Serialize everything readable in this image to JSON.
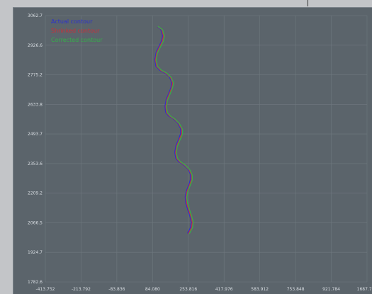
{
  "chart_data": {
    "type": "line",
    "title": "",
    "xlabel": "",
    "ylabel": "",
    "xlim": [
      -413.752,
      1687.728
    ],
    "ylim": [
      1782.6,
      3062.7
    ],
    "x_ticks": [
      "-413.752",
      "-213.792",
      "-83.836",
      "84.080",
      "253.816",
      "417.976",
      "583.912",
      "753.848",
      "921.784",
      "1687.728"
    ],
    "y_ticks": [
      "3062.7",
      "2926.6",
      "2775.2",
      "2633.8",
      "2493.7",
      "2353.6",
      "2209.2",
      "2066.5",
      "1924.7",
      "1782.6"
    ],
    "grid": true,
    "legend_position": "top-left",
    "series": [
      {
        "name": "Actual contour",
        "color": "#2b2fd1",
        "points": [
          [
            321.0,
            3008
          ],
          [
            340.0,
            2997
          ],
          [
            352.0,
            2968
          ],
          [
            348.0,
            2946
          ],
          [
            330.0,
            2916
          ],
          [
            310.0,
            2886
          ],
          [
            302.0,
            2852
          ],
          [
            308.0,
            2820
          ],
          [
            334.0,
            2800
          ],
          [
            364.0,
            2788
          ],
          [
            396.0,
            2770
          ],
          [
            412.0,
            2742
          ],
          [
            408.0,
            2718
          ],
          [
            392.0,
            2688
          ],
          [
            376.0,
            2660
          ],
          [
            368.0,
            2628
          ],
          [
            372.0,
            2598
          ],
          [
            392.0,
            2580
          ],
          [
            420.0,
            2568
          ],
          [
            450.0,
            2548
          ],
          [
            470.0,
            2520
          ],
          [
            470.0,
            2496
          ],
          [
            456.0,
            2466
          ],
          [
            440.0,
            2438
          ],
          [
            432.0,
            2406
          ],
          [
            438.0,
            2378
          ],
          [
            458.0,
            2360
          ],
          [
            488.0,
            2346
          ],
          [
            518.0,
            2326
          ],
          [
            534.0,
            2300
          ],
          [
            534.0,
            2276
          ],
          [
            524.0,
            2250
          ],
          [
            508.0,
            2220
          ],
          [
            500.0,
            2192
          ],
          [
            504.0,
            2160
          ],
          [
            516.0,
            2132
          ],
          [
            530.0,
            2100
          ],
          [
            540.0,
            2072
          ],
          [
            536.0,
            2046
          ],
          [
            516.0,
            2018
          ]
        ]
      },
      {
        "name": "Shrinked contour",
        "color": "#c8303a",
        "points": [
          [
            322.0,
            3009
          ],
          [
            346.0,
            2996
          ],
          [
            358.0,
            2966
          ],
          [
            352.0,
            2942
          ],
          [
            334.0,
            2914
          ],
          [
            314.0,
            2884
          ],
          [
            306.0,
            2850
          ],
          [
            314.0,
            2819
          ],
          [
            340.0,
            2800
          ],
          [
            370.0,
            2788
          ],
          [
            402.0,
            2768
          ],
          [
            418.0,
            2740
          ],
          [
            412.0,
            2716
          ],
          [
            396.0,
            2686
          ],
          [
            380.0,
            2658
          ],
          [
            373.0,
            2626
          ],
          [
            378.0,
            2597
          ],
          [
            398.0,
            2580
          ],
          [
            426.0,
            2567
          ],
          [
            456.0,
            2546
          ],
          [
            476.0,
            2518
          ],
          [
            476.0,
            2494
          ],
          [
            460.0,
            2464
          ],
          [
            444.0,
            2436
          ],
          [
            437.0,
            2404
          ],
          [
            444.0,
            2377
          ],
          [
            464.0,
            2360
          ],
          [
            494.0,
            2345
          ],
          [
            524.0,
            2324
          ],
          [
            540.0,
            2298
          ],
          [
            540.0,
            2274
          ],
          [
            528.0,
            2248
          ],
          [
            512.0,
            2218
          ],
          [
            505.0,
            2190
          ],
          [
            510.0,
            2159
          ],
          [
            522.0,
            2131
          ],
          [
            536.0,
            2099
          ],
          [
            546.0,
            2071
          ],
          [
            542.0,
            2045
          ],
          [
            522.0,
            2017
          ]
        ]
      },
      {
        "name": "Corrected contour",
        "color": "#35b04a",
        "points": [
          [
            323.0,
            3010
          ],
          [
            352.0,
            2995
          ],
          [
            364.0,
            2964
          ],
          [
            356.0,
            2938
          ],
          [
            338.0,
            2912
          ],
          [
            318.0,
            2882
          ],
          [
            310.0,
            2848
          ],
          [
            320.0,
            2818
          ],
          [
            346.0,
            2800
          ],
          [
            376.0,
            2788
          ],
          [
            408.0,
            2766
          ],
          [
            424.0,
            2738
          ],
          [
            416.0,
            2714
          ],
          [
            400.0,
            2684
          ],
          [
            384.0,
            2656
          ],
          [
            378.0,
            2624
          ],
          [
            384.0,
            2596
          ],
          [
            404.0,
            2580
          ],
          [
            432.0,
            2566
          ],
          [
            462.0,
            2544
          ],
          [
            482.0,
            2516
          ],
          [
            482.0,
            2492
          ],
          [
            464.0,
            2462
          ],
          [
            448.0,
            2434
          ],
          [
            442.0,
            2402
          ],
          [
            450.0,
            2376
          ],
          [
            470.0,
            2360
          ],
          [
            500.0,
            2344
          ],
          [
            530.0,
            2322
          ],
          [
            546.0,
            2296
          ],
          [
            546.0,
            2272
          ],
          [
            532.0,
            2246
          ],
          [
            516.0,
            2216
          ],
          [
            510.0,
            2188
          ],
          [
            516.0,
            2158
          ],
          [
            528.0,
            2130
          ],
          [
            542.0,
            2098
          ],
          [
            552.0,
            2070
          ],
          [
            548.0,
            2044
          ],
          [
            528.0,
            2016
          ]
        ]
      }
    ]
  },
  "style": {
    "panel_bg": "#5b646b",
    "grid_color": "#6f787f",
    "tick_color": "#d8dde2"
  }
}
